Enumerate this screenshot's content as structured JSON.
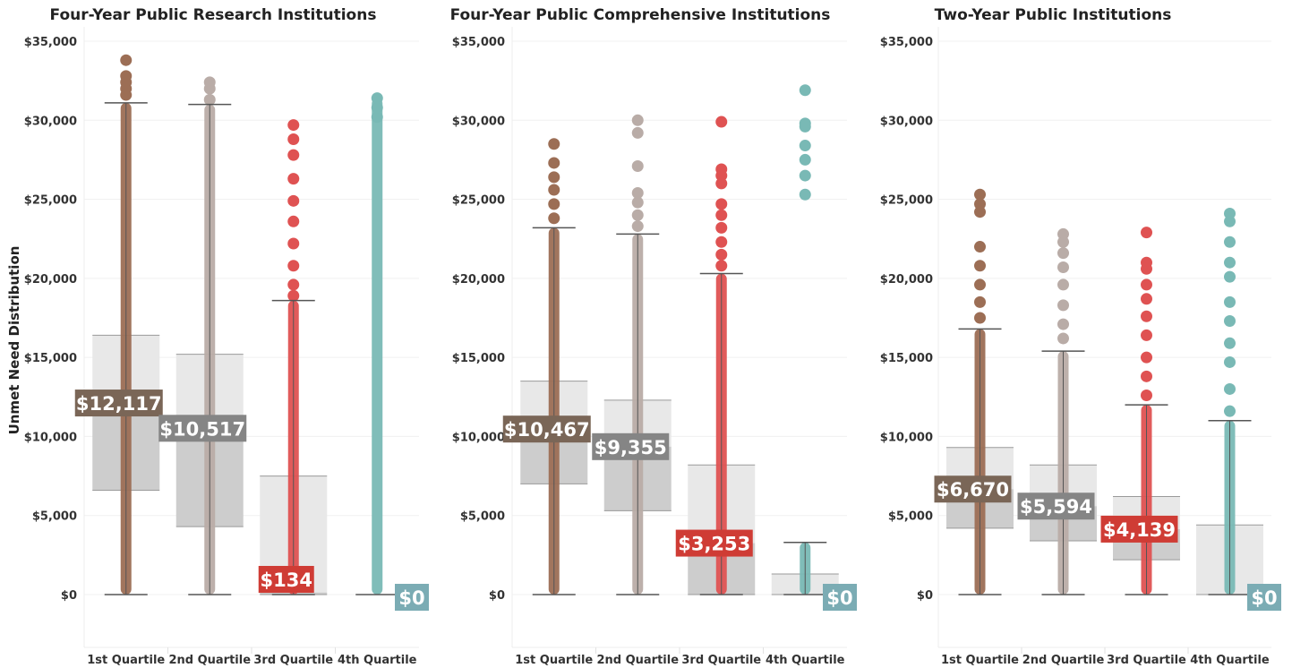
{
  "y_axis_label": "Unmet Need Distribution",
  "colors": {
    "1st Quartile": "#9c6e55",
    "2nd Quartile": "#b9aca7",
    "3rd Quartile": "#df5252",
    "4th Quartile": "#79b9b5",
    "label_1st": "#7a6657",
    "label_2nd": "#858585",
    "label_3rd": "#cf3c35",
    "label_4th": "#7bacb4"
  },
  "chart_data": [
    {
      "type": "boxplot",
      "title": "Four-Year Public Research Institutions",
      "ylim": [
        -3500,
        36500
      ],
      "yticks": [
        0,
        5000,
        10000,
        15000,
        20000,
        25000,
        30000,
        35000
      ],
      "ytick_labels": [
        "$0",
        "$5,000",
        "$10,000",
        "$15,000",
        "$20,000",
        "$25,000",
        "$30,000",
        "$35,000"
      ],
      "categories": [
        "1st Quartile",
        "2nd Quartile",
        "3rd Quartile",
        "4th Quartile"
      ],
      "series": [
        {
          "category": "1st Quartile",
          "whisker_low": 0,
          "q1": 6600,
          "median": 12117,
          "q3": 16400,
          "whisker_high": 31100,
          "point_max": 33800,
          "median_label": "$12,117",
          "outliers": [
            31600,
            32000,
            32400,
            32800,
            33800
          ]
        },
        {
          "category": "2nd Quartile",
          "whisker_low": 0,
          "q1": 4300,
          "median": 10517,
          "q3": 15200,
          "whisker_high": 31000,
          "point_max": 32400,
          "median_label": "$10,517",
          "outliers": [
            31300,
            32000,
            32400
          ]
        },
        {
          "category": "3rd Quartile",
          "whisker_low": 0,
          "q1": 0,
          "median": 134,
          "q3": 7500,
          "whisker_high": 18600,
          "point_max": 29700,
          "median_label": "$134",
          "outliers": [
            18900,
            19600,
            20800,
            22200,
            23600,
            24900,
            26300,
            27800,
            28800,
            29700
          ]
        },
        {
          "category": "4th Quartile",
          "whisker_low": 0,
          "q1": 0,
          "median": 0,
          "q3": 0,
          "whisker_high": 0,
          "point_max": 31400,
          "median_label": "$0",
          "outliers": [
            30200,
            30800,
            31400
          ]
        }
      ]
    },
    {
      "type": "boxplot",
      "title": "Four-Year Public Comprehensive Institutions",
      "ylim": [
        -3500,
        36500
      ],
      "yticks": [
        0,
        5000,
        10000,
        15000,
        20000,
        25000,
        30000,
        35000
      ],
      "ytick_labels": [
        "$0",
        "$5,000",
        "$10,000",
        "$15,000",
        "$20,000",
        "$25,000",
        "$30,000",
        "$35,000"
      ],
      "categories": [
        "1st Quartile",
        "2nd Quartile",
        "3rd Quartile",
        "4th Quartile"
      ],
      "series": [
        {
          "category": "1st Quartile",
          "whisker_low": 0,
          "q1": 7000,
          "median": 10467,
          "q3": 13500,
          "whisker_high": 23200,
          "point_max": 28500,
          "median_label": "$10,467",
          "outliers": [
            23800,
            24700,
            25600,
            26400,
            27300,
            28500
          ]
        },
        {
          "category": "2nd Quartile",
          "whisker_low": 0,
          "q1": 5300,
          "median": 9355,
          "q3": 12300,
          "whisker_high": 22800,
          "point_max": 30000,
          "median_label": "$9,355",
          "outliers": [
            23300,
            24000,
            24800,
            25400,
            27100,
            29200,
            30000
          ]
        },
        {
          "category": "3rd Quartile",
          "whisker_low": 0,
          "q1": 0,
          "median": 3253,
          "q3": 8200,
          "whisker_high": 20300,
          "point_max": 29900,
          "median_label": "$3,253",
          "outliers": [
            20800,
            21500,
            22300,
            23200,
            24000,
            24700,
            26000,
            26500,
            26900,
            29900
          ]
        },
        {
          "category": "4th Quartile",
          "whisker_low": 0,
          "q1": 0,
          "median": 0,
          "q3": 1300,
          "whisker_high": 3300,
          "point_max": 31900,
          "median_label": "$0",
          "outliers": [
            25300,
            26500,
            27500,
            28400,
            29600,
            29800,
            31900
          ]
        }
      ]
    },
    {
      "type": "boxplot",
      "title": "Two-Year Public Institutions",
      "ylim": [
        -3500,
        36500
      ],
      "yticks": [
        0,
        5000,
        10000,
        15000,
        20000,
        25000,
        30000,
        35000
      ],
      "ytick_labels": [
        "$0",
        "$5,000",
        "$10,000",
        "$15,000",
        "$20,000",
        "$25,000",
        "$30,000",
        "$35,000"
      ],
      "categories": [
        "1st Quartile",
        "2nd Quartile",
        "3rd Quartile",
        "4th Quartile"
      ],
      "series": [
        {
          "category": "1st Quartile",
          "whisker_low": 0,
          "q1": 4200,
          "median": 6670,
          "q3": 9300,
          "whisker_high": 16800,
          "point_max": 25300,
          "median_label": "$6,670",
          "outliers": [
            17500,
            18500,
            19600,
            20800,
            22000,
            24200,
            24700,
            25300
          ]
        },
        {
          "category": "2nd Quartile",
          "whisker_low": 0,
          "q1": 3400,
          "median": 5594,
          "q3": 8200,
          "whisker_high": 15400,
          "point_max": 22800,
          "median_label": "$5,594",
          "outliers": [
            16200,
            17100,
            18300,
            19600,
            20700,
            21600,
            22300,
            22800
          ]
        },
        {
          "category": "3rd Quartile",
          "whisker_low": 0,
          "q1": 2200,
          "median": 4139,
          "q3": 6200,
          "whisker_high": 12000,
          "point_max": 22900,
          "median_label": "$4,139",
          "outliers": [
            12600,
            13800,
            15000,
            16400,
            17600,
            18700,
            19600,
            20600,
            21000,
            22900
          ]
        },
        {
          "category": "4th Quartile",
          "whisker_low": 0,
          "q1": 0,
          "median": 0,
          "q3": 4400,
          "whisker_high": 11000,
          "point_max": 24100,
          "median_label": "$0",
          "outliers": [
            11600,
            13000,
            14700,
            15900,
            17300,
            18500,
            20100,
            21000,
            22300,
            23600,
            24100
          ]
        }
      ]
    }
  ]
}
